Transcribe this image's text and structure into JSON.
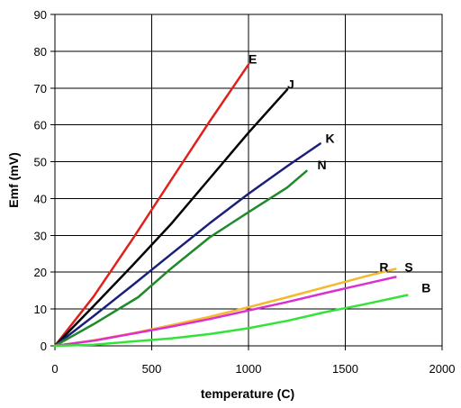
{
  "chart_data": {
    "type": "line",
    "title": "",
    "xlabel": "temperature (C)",
    "ylabel": "Emf (mV)",
    "xlim": [
      0,
      2000
    ],
    "ylim": [
      0,
      90
    ],
    "x_ticks": [
      0,
      500,
      1000,
      1500,
      2000
    ],
    "y_ticks": [
      0,
      10,
      20,
      30,
      40,
      50,
      60,
      70,
      80,
      90
    ],
    "grid": true,
    "legend": "none (series labeled at line ends)",
    "series": [
      {
        "name": "E",
        "color": "#e0201b",
        "x": [
          0,
          200,
          400,
          600,
          800,
          1000
        ],
        "y": [
          0,
          13.4,
          28.9,
          45.0,
          61.0,
          76.4
        ]
      },
      {
        "name": "J",
        "color": "#000000",
        "x": [
          0,
          200,
          400,
          600,
          800,
          1000,
          1200
        ],
        "y": [
          0,
          10.8,
          21.8,
          33.1,
          45.5,
          57.9,
          69.6
        ]
      },
      {
        "name": "K",
        "color": "#1c1f7a",
        "x": [
          0,
          200,
          400,
          600,
          800,
          1000,
          1200,
          1370
        ],
        "y": [
          0,
          8.1,
          16.4,
          24.9,
          33.3,
          41.3,
          48.8,
          54.9
        ]
      },
      {
        "name": "N",
        "color": "#1f8a2a",
        "x": [
          0,
          200,
          430,
          600,
          800,
          1000,
          1200,
          1300
        ],
        "y": [
          0,
          5.9,
          13.2,
          21.0,
          29.5,
          36.3,
          43.0,
          47.5
        ]
      },
      {
        "name": "R",
        "color": "#f5b82e",
        "x": [
          0,
          200,
          400,
          600,
          800,
          1000,
          1200,
          1400,
          1600,
          1760
        ],
        "y": [
          0,
          1.5,
          3.4,
          5.6,
          7.9,
          10.5,
          13.2,
          16.0,
          18.8,
          20.9
        ]
      },
      {
        "name": "S",
        "color": "#dc2fd1",
        "x": [
          0,
          200,
          400,
          600,
          800,
          1000,
          1200,
          1400,
          1600,
          1760
        ],
        "y": [
          0,
          1.4,
          3.3,
          5.2,
          7.3,
          9.6,
          11.9,
          14.4,
          16.8,
          18.7
        ]
      },
      {
        "name": "B",
        "color": "#33e338",
        "x": [
          0,
          200,
          400,
          600,
          800,
          1000,
          1200,
          1400,
          1600,
          1820
        ],
        "y": [
          0,
          0.3,
          1.2,
          2.0,
          3.2,
          4.8,
          6.8,
          9.2,
          11.3,
          13.8
        ]
      }
    ]
  }
}
